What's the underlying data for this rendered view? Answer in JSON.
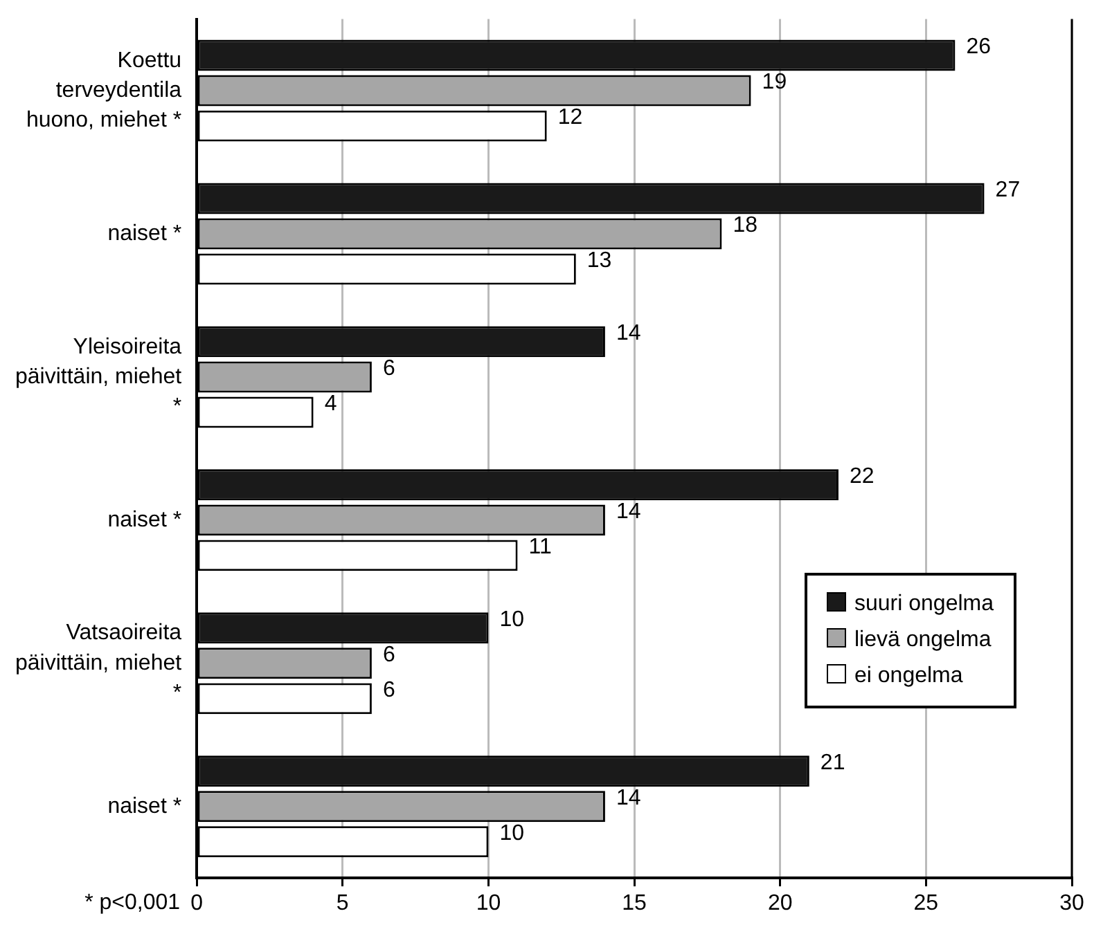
{
  "chart_data": {
    "type": "bar",
    "orientation": "horizontal",
    "categories": [
      "Koettu terveydentila huono, miehet *",
      "naiset *",
      "Yleisoireita päivittäin, miehet *",
      "naiset *",
      "Vatsaoireita päivittäin, miehet *",
      "naiset *"
    ],
    "series": [
      {
        "name": "suuri ongelma",
        "color": "#1a1a1a",
        "values": [
          26,
          27,
          14,
          22,
          10,
          21
        ]
      },
      {
        "name": "lievä ongelma",
        "color": "#a6a6a6",
        "values": [
          19,
          18,
          6,
          14,
          6,
          14
        ]
      },
      {
        "name": "ei ongelma",
        "color": "#ffffff",
        "values": [
          12,
          13,
          4,
          11,
          6,
          10
        ]
      }
    ],
    "xlim": [
      0,
      30
    ],
    "xticks": [
      0,
      5,
      10,
      15,
      20,
      25,
      30
    ],
    "grid": "x",
    "legend": "bottom right",
    "data_labels": true,
    "annotations": [
      "* p<0,001"
    ]
  }
}
